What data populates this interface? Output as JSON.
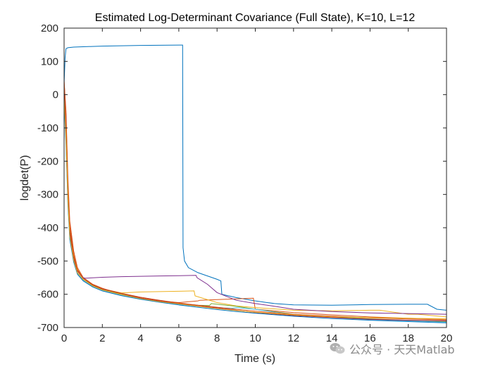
{
  "chart_data": {
    "type": "line",
    "title": "Estimated Log-Determinant Covariance (Full State), K=10, L=12",
    "xlabel": "Time (s)",
    "ylabel": "logdet(P)",
    "xlim": [
      0,
      20
    ],
    "ylim": [
      -700,
      200
    ],
    "xticks": [
      0,
      2,
      4,
      6,
      8,
      10,
      12,
      14,
      16,
      18,
      20
    ],
    "yticks": [
      -700,
      -600,
      -500,
      -400,
      -300,
      -200,
      -100,
      0,
      100,
      200
    ],
    "grid": false,
    "series": [
      {
        "name": "blue",
        "color": "#0072BD",
        "x": [
          0,
          0.05,
          0.1,
          0.2,
          0.5,
          1,
          2,
          3,
          4,
          5,
          6.2,
          6.22,
          6.3,
          6.5,
          7,
          7.5,
          8.0,
          8.2,
          8.25,
          9,
          10,
          11,
          12,
          14,
          16,
          18,
          19,
          19.5,
          20
        ],
        "y": [
          30,
          110,
          138,
          141,
          143,
          144,
          146,
          147,
          148,
          148.5,
          149,
          -460,
          -500,
          -520,
          -535,
          -545,
          -555,
          -560,
          -600,
          -610,
          -620,
          -628,
          -632,
          -633,
          -631,
          -630,
          -630,
          -645,
          -648
        ]
      },
      {
        "name": "orange",
        "color": "#D95319",
        "x": [
          0,
          0.1,
          0.2,
          0.3,
          0.5,
          0.7,
          1,
          1.5,
          2,
          3,
          4,
          5,
          6,
          7,
          7.1,
          8,
          9,
          9.9,
          10,
          12,
          14,
          16,
          18,
          20
        ],
        "y": [
          40,
          -50,
          -250,
          -380,
          -470,
          -520,
          -550,
          -570,
          -582,
          -600,
          -612,
          -620,
          -625,
          -620,
          -618,
          -616,
          -614,
          -612,
          -645,
          -655,
          -662,
          -668,
          -672,
          -675
        ]
      },
      {
        "name": "yellow",
        "color": "#EDB120",
        "x": [
          0,
          0.1,
          0.2,
          0.3,
          0.5,
          0.7,
          1,
          1.5,
          2,
          3,
          4,
          5,
          6,
          6.8,
          6.85,
          8,
          9,
          10,
          12,
          14,
          16,
          16.5,
          18,
          18.5,
          20
        ],
        "y": [
          20,
          -80,
          -280,
          -400,
          -480,
          -525,
          -552,
          -572,
          -584,
          -596,
          -593,
          -592,
          -591,
          -590,
          -605,
          -625,
          -635,
          -640,
          -648,
          -650,
          -648,
          -648,
          -660,
          -660,
          -668
        ]
      },
      {
        "name": "purple",
        "color": "#7E2F8E",
        "x": [
          0,
          0.1,
          0.2,
          0.3,
          0.5,
          0.7,
          1,
          1.1,
          2,
          3,
          4,
          5,
          6,
          6.9,
          6.95,
          7.5,
          8,
          9,
          10,
          11,
          12,
          14,
          16,
          18,
          20
        ],
        "y": [
          10,
          -100,
          -300,
          -420,
          -490,
          -530,
          -550,
          -552,
          -549,
          -547,
          -546,
          -545,
          -544,
          -543,
          -550,
          -570,
          -595,
          -618,
          -628,
          -636,
          -645,
          -652,
          -656,
          -658,
          -660
        ]
      },
      {
        "name": "green",
        "color": "#77AC30",
        "x": [
          0,
          0.1,
          0.2,
          0.3,
          0.5,
          0.7,
          1,
          1.5,
          2,
          3,
          4,
          5,
          6,
          7,
          7.6,
          7.7,
          8,
          9,
          10,
          12,
          14,
          16,
          18,
          20
        ],
        "y": [
          0,
          -120,
          -310,
          -420,
          -495,
          -535,
          -555,
          -574,
          -586,
          -600,
          -612,
          -620,
          -628,
          -633,
          -634,
          -628,
          -630,
          -636,
          -645,
          -660,
          -668,
          -674,
          -678,
          -682
        ]
      },
      {
        "name": "cyan",
        "color": "#4DBEEE",
        "x": [
          0,
          0.1,
          0.2,
          0.3,
          0.5,
          0.7,
          1,
          1.5,
          2,
          3,
          4,
          5,
          6,
          7,
          8,
          8.8,
          9,
          10,
          12,
          14,
          16,
          18,
          20
        ],
        "y": [
          -10,
          -140,
          -320,
          -430,
          -500,
          -538,
          -558,
          -576,
          -588,
          -602,
          -614,
          -623,
          -630,
          -636,
          -640,
          -642,
          -640,
          -645,
          -662,
          -670,
          -676,
          -680,
          -684
        ]
      },
      {
        "name": "maroon",
        "color": "#A2142F",
        "x": [
          0,
          0.1,
          0.2,
          0.3,
          0.5,
          0.7,
          1,
          1.5,
          2,
          3,
          4,
          5,
          6,
          7,
          8,
          9,
          10,
          12,
          14,
          16,
          18,
          20
        ],
        "y": [
          30,
          -90,
          -290,
          -410,
          -488,
          -530,
          -552,
          -572,
          -584,
          -598,
          -611,
          -620,
          -628,
          -635,
          -641,
          -648,
          -655,
          -664,
          -670,
          -675,
          -678,
          -680
        ]
      },
      {
        "name": "blue2",
        "color": "#0072BD",
        "x": [
          0,
          0.1,
          0.2,
          0.3,
          0.5,
          0.7,
          1,
          1.5,
          2,
          3,
          4,
          5,
          6,
          7,
          8,
          9,
          10,
          12,
          14,
          16,
          18,
          20
        ],
        "y": [
          -20,
          -150,
          -330,
          -435,
          -503,
          -540,
          -560,
          -578,
          -590,
          -604,
          -615,
          -624,
          -632,
          -639,
          -646,
          -652,
          -657,
          -666,
          -673,
          -678,
          -682,
          -686
        ]
      },
      {
        "name": "orange2",
        "color": "#D95319",
        "x": [
          0,
          0.1,
          0.2,
          0.3,
          0.5,
          0.7,
          1,
          1.5,
          2,
          3,
          4,
          5,
          6,
          7,
          8,
          9,
          10,
          12,
          14,
          16,
          18,
          20
        ],
        "y": [
          45,
          -60,
          -270,
          -395,
          -482,
          -527,
          -551,
          -571,
          -583,
          -597,
          -609,
          -618,
          -626,
          -633,
          -639,
          -645,
          -651,
          -660,
          -666,
          -671,
          -674,
          -677
        ]
      },
      {
        "name": "yellow2",
        "color": "#EDB120",
        "x": [
          0,
          0.1,
          0.2,
          0.3,
          0.5,
          0.7,
          1,
          1.5,
          2,
          3,
          4,
          5,
          6,
          7,
          8,
          9,
          10,
          12,
          14,
          16,
          18,
          20
        ],
        "y": [
          -5,
          -130,
          -315,
          -425,
          -497,
          -536,
          -556,
          -575,
          -587,
          -601,
          -613,
          -622,
          -629,
          -636,
          -643,
          -649,
          -654,
          -662,
          -668,
          -670,
          -672,
          -674
        ]
      }
    ]
  },
  "watermark": {
    "text": "公众号 · 天天Matlab",
    "icon": "wechat-icon"
  }
}
